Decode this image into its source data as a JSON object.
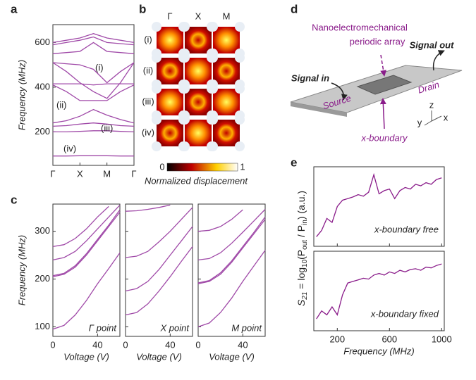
{
  "chart_data": [
    {
      "type": "line",
      "panel": "a",
      "ylabel": "Frequency (MHz)",
      "x": [
        0,
        0.5,
        1,
        1.5,
        2,
        2.5,
        3
      ],
      "xlim": [
        0,
        3
      ],
      "xticks": [
        {
          "value": 0,
          "label": "Γ"
        },
        {
          "value": 1,
          "label": "X"
        },
        {
          "value": 2,
          "label": "M"
        },
        {
          "value": 3,
          "label": "Γ"
        }
      ],
      "ylim": [
        50,
        680
      ],
      "yticks": [
        200,
        400,
        600
      ],
      "annotations": [
        "(i)",
        "(ii)",
        "(iii)",
        "(iv)"
      ],
      "series": [
        {
          "color": "#a04aa8",
          "values": [
            92,
            92,
            93,
            93,
            93,
            92,
            92
          ]
        },
        {
          "color": "#a04aa8",
          "values": [
            200,
            200,
            202,
            205,
            205,
            202,
            200
          ]
        },
        {
          "color": "#a04aa8",
          "values": [
            225,
            228,
            235,
            240,
            235,
            228,
            225
          ]
        },
        {
          "color": "#a04aa8",
          "values": [
            240,
            250,
            270,
            300,
            275,
            255,
            240
          ]
        },
        {
          "color": "#a04aa8",
          "values": [
            410,
            380,
            340,
            340,
            340,
            380,
            410
          ]
        },
        {
          "color": "#a04aa8",
          "values": [
            415,
            415,
            415,
            410,
            415,
            415,
            415
          ]
        },
        {
          "color": "#a04aa8",
          "values": [
            510,
            470,
            420,
            380,
            350,
            420,
            510
          ]
        },
        {
          "color": "#a04aa8",
          "values": [
            510,
            505,
            500,
            480,
            420,
            470,
            510
          ]
        },
        {
          "color": "#a04aa8",
          "values": [
            550,
            555,
            560,
            600,
            560,
            555,
            550
          ]
        },
        {
          "color": "#a04aa8",
          "values": [
            590,
            600,
            610,
            625,
            600,
            595,
            590
          ]
        },
        {
          "color": "#a04aa8",
          "values": [
            600,
            610,
            620,
            640,
            620,
            610,
            600
          ]
        }
      ]
    },
    {
      "type": "heatmap",
      "panel": "b",
      "columns": [
        "Γ",
        "X",
        "M"
      ],
      "rows": [
        "(i)",
        "(ii)",
        "(iii)",
        "(iv)"
      ],
      "colorbar": {
        "ticks": [
          0,
          1
        ],
        "label": "Normalized displacement"
      }
    },
    {
      "type": "line",
      "panel": "c",
      "ylabel": "Frequency (MHz)",
      "xlabel": "Voltage (V)",
      "x": [
        0,
        10,
        20,
        30,
        40,
        50,
        60
      ],
      "xlim": [
        0,
        60
      ],
      "xticks": [
        0,
        40
      ],
      "ylim": [
        80,
        357
      ],
      "yticks": [
        100,
        200,
        300
      ],
      "annotations": [
        "Γ point"
      ],
      "series": [
        {
          "color": "#a04aa8",
          "values": [
            95,
            103,
            125,
            155,
            190,
            222,
            255
          ]
        },
        {
          "color": "#a04aa8",
          "values": [
            205,
            210,
            225,
            250,
            280,
            310,
            340
          ]
        },
        {
          "color": "#a04aa8",
          "values": [
            207,
            212,
            228,
            253,
            283,
            313,
            345
          ]
        },
        {
          "color": "#a04aa8",
          "values": [
            240,
            245,
            258,
            280,
            305,
            330,
            355
          ]
        },
        {
          "color": "#a04aa8",
          "values": [
            268,
            272,
            285,
            305,
            330,
            352,
            null
          ]
        }
      ]
    },
    {
      "type": "line",
      "xlabel": "Voltage (V)",
      "x": [
        0,
        10,
        20,
        30,
        40,
        50,
        60
      ],
      "xlim": [
        0,
        60
      ],
      "xticks": [
        0,
        40
      ],
      "ylim": [
        80,
        357
      ],
      "yticks": [
        100,
        200,
        300
      ],
      "annotations": [
        "X point"
      ],
      "series": [
        {
          "color": "#a04aa8",
          "values": [
            125,
            130,
            148,
            175,
            205,
            237,
            268
          ]
        },
        {
          "color": "#a04aa8",
          "values": [
            175,
            180,
            195,
            220,
            250,
            280,
            310
          ]
        },
        {
          "color": "#a04aa8",
          "values": [
            245,
            248,
            258,
            278,
            300,
            325,
            350
          ]
        },
        {
          "color": "#a04aa8",
          "values": [
            342,
            343,
            346,
            350,
            355,
            null,
            null
          ]
        }
      ]
    },
    {
      "type": "line",
      "xlabel": "Voltage (V)",
      "x": [
        0,
        10,
        20,
        30,
        40,
        50,
        60
      ],
      "xlim": [
        0,
        60
      ],
      "xticks": [
        0,
        40
      ],
      "ylim": [
        80,
        357
      ],
      "yticks": [
        100,
        200,
        300
      ],
      "annotations": [
        "M point"
      ],
      "series": [
        {
          "color": "#a04aa8",
          "values": [
            100,
            108,
            130,
            160,
            195,
            228,
            260
          ]
        },
        {
          "color": "#a04aa8",
          "values": [
            190,
            195,
            210,
            235,
            265,
            295,
            325
          ]
        },
        {
          "color": "#a04aa8",
          "values": [
            192,
            197,
            213,
            238,
            268,
            298,
            330
          ]
        },
        {
          "color": "#a04aa8",
          "values": [
            240,
            243,
            255,
            275,
            298,
            322,
            346
          ]
        },
        {
          "color": "#a04aa8",
          "values": [
            300,
            302,
            310,
            325,
            345,
            null,
            null
          ]
        }
      ]
    },
    {
      "type": "line",
      "panel": "e",
      "ylabel": [
        "S",
        "21",
        " = log",
        "10",
        "(P",
        "out",
        " / P",
        "in",
        ") (a.u.)"
      ],
      "x": [
        40,
        80,
        120,
        160,
        200,
        240,
        280,
        320,
        360,
        400,
        440,
        480,
        520,
        560,
        600,
        640,
        680,
        720,
        760,
        800,
        840,
        880,
        920,
        960,
        1000
      ],
      "xlim": [
        20,
        1020
      ],
      "xticks": [
        200,
        600,
        1000
      ],
      "ylim": [
        0,
        1
      ],
      "annotations": [
        "x-boundary free"
      ],
      "series": [
        {
          "color": "#8a1c8a",
          "values": [
            0.12,
            0.2,
            0.35,
            0.3,
            0.5,
            0.58,
            0.6,
            0.62,
            0.65,
            0.63,
            0.68,
            0.9,
            0.66,
            0.7,
            0.72,
            0.6,
            0.7,
            0.74,
            0.72,
            0.78,
            0.76,
            0.8,
            0.78,
            0.84,
            0.86
          ]
        }
      ]
    },
    {
      "type": "line",
      "xlabel": "Frequency (MHz)",
      "x": [
        40,
        80,
        120,
        160,
        200,
        240,
        280,
        320,
        360,
        400,
        440,
        480,
        520,
        560,
        600,
        640,
        680,
        720,
        760,
        800,
        840,
        880,
        920,
        960,
        1000
      ],
      "xlim": [
        20,
        1020
      ],
      "xticks": [
        200,
        600,
        1000
      ],
      "ylim": [
        0,
        1
      ],
      "annotations": [
        "x-boundary fixed"
      ],
      "series": [
        {
          "color": "#8a1c8a",
          "values": [
            0.15,
            0.25,
            0.2,
            0.3,
            0.2,
            0.45,
            0.6,
            0.62,
            0.64,
            0.66,
            0.65,
            0.7,
            0.72,
            0.7,
            0.74,
            0.72,
            0.76,
            0.74,
            0.77,
            0.78,
            0.76,
            0.8,
            0.79,
            0.82,
            0.84
          ]
        }
      ]
    }
  ],
  "diagram": {
    "panel": "d",
    "array_label": [
      "Nanoelectromechanical",
      "periodic array"
    ],
    "signal_in": "Signal in",
    "signal_out": "Signal out",
    "drain": "Drain",
    "source": "Source",
    "x_boundary": "x-boundary",
    "axes": [
      "z",
      "y",
      "x"
    ]
  }
}
